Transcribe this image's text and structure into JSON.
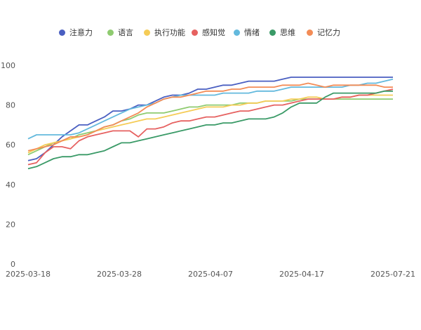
{
  "chart_data": {
    "type": "line",
    "title": "",
    "xlabel": "",
    "ylabel": "",
    "ylim": [
      0,
      100
    ],
    "yticks": [
      0,
      20,
      40,
      60,
      80,
      100
    ],
    "grid": false,
    "legend_position": "top",
    "x_tick_labels": [
      "2025-03-18",
      "2025-03-28",
      "2025-04-07",
      "2025-04-17",
      "2025-07-21"
    ],
    "series": [
      {
        "name": "注意力",
        "color": "#4a5fc1",
        "values": [
          52,
          53,
          56,
          60,
          64,
          67,
          70,
          70,
          72,
          74,
          77,
          77,
          78,
          80,
          80,
          82,
          84,
          85,
          85,
          86,
          88,
          88,
          89,
          90,
          90,
          91,
          92,
          92,
          92,
          92,
          93,
          94,
          94,
          94,
          94,
          94,
          94,
          94,
          94,
          94,
          94,
          94,
          94,
          94
        ]
      },
      {
        "name": "语言",
        "color": "#8fcb70",
        "values": [
          55,
          57,
          59,
          61,
          62,
          63,
          65,
          66,
          67,
          69,
          70,
          72,
          73,
          75,
          76,
          76,
          76,
          77,
          78,
          79,
          79,
          80,
          80,
          80,
          80,
          81,
          81,
          81,
          82,
          82,
          82,
          82,
          83,
          83,
          83,
          83,
          83,
          83,
          83,
          83,
          83,
          83,
          83,
          83
        ]
      },
      {
        "name": "执行功能",
        "color": "#f5cc57",
        "values": [
          56,
          58,
          60,
          61,
          62,
          63,
          64,
          65,
          67,
          68,
          69,
          70,
          71,
          72,
          73,
          73,
          74,
          75,
          76,
          77,
          78,
          79,
          79,
          79,
          80,
          80,
          81,
          81,
          82,
          82,
          82,
          83,
          83,
          84,
          84,
          83,
          83,
          84,
          84,
          85,
          85,
          85,
          85,
          85
        ]
      },
      {
        "name": "感知觉",
        "color": "#e66160",
        "values": [
          50,
          51,
          56,
          59,
          59,
          58,
          62,
          64,
          65,
          66,
          67,
          67,
          67,
          64,
          68,
          68,
          69,
          71,
          72,
          72,
          73,
          74,
          74,
          75,
          76,
          77,
          77,
          78,
          79,
          80,
          80,
          81,
          82,
          83,
          83,
          83,
          83,
          84,
          84,
          85,
          85,
          86,
          87,
          88
        ]
      },
      {
        "name": "情绪",
        "color": "#63b9dd",
        "values": [
          63,
          65,
          65,
          65,
          65,
          65,
          66,
          68,
          70,
          72,
          74,
          76,
          78,
          79,
          80,
          81,
          83,
          84,
          85,
          85,
          85,
          85,
          85,
          86,
          86,
          86,
          86,
          87,
          87,
          87,
          88,
          89,
          89,
          89,
          89,
          89,
          89,
          89,
          90,
          90,
          91,
          91,
          92,
          93
        ]
      },
      {
        "name": "思维",
        "color": "#3a9a67",
        "values": [
          48,
          49,
          51,
          53,
          54,
          54,
          55,
          55,
          56,
          57,
          59,
          61,
          61,
          62,
          63,
          64,
          65,
          66,
          67,
          68,
          69,
          70,
          70,
          71,
          71,
          72,
          73,
          73,
          73,
          74,
          76,
          79,
          81,
          81,
          81,
          84,
          86,
          86,
          86,
          86,
          86,
          86,
          87,
          87
        ]
      },
      {
        "name": "记忆力",
        "color": "#f38c56",
        "values": [
          57,
          58,
          59,
          60,
          62,
          64,
          64,
          65,
          67,
          69,
          70,
          72,
          74,
          76,
          79,
          81,
          83,
          84,
          84,
          85,
          86,
          87,
          87,
          87,
          88,
          88,
          89,
          89,
          89,
          89,
          90,
          90,
          90,
          91,
          90,
          89,
          90,
          90,
          90,
          90,
          90,
          90,
          89,
          89
        ]
      }
    ]
  }
}
